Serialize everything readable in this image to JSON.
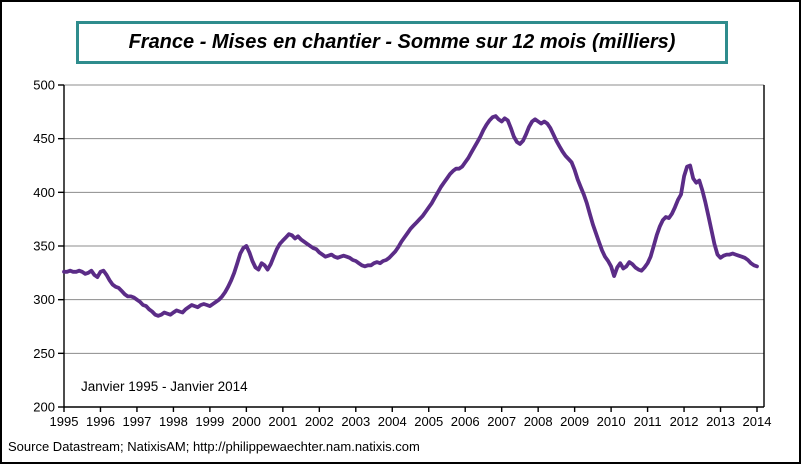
{
  "chart_data": {
    "type": "line",
    "title": "France - Mises en chantier - Somme sur 12 mois (milliers)",
    "annotation": "Janvier 1995 - Janvier 2014",
    "source": "Source Datastream; NatixisAM; http://philippewaechter.nam.natixis.com",
    "xlabel": "",
    "ylabel": "",
    "ylim": [
      200,
      500
    ],
    "y_ticks": [
      200,
      250,
      300,
      350,
      400,
      450,
      500
    ],
    "x_tick_labels": [
      "1995",
      "1996",
      "1997",
      "1998",
      "1999",
      "2000",
      "2001",
      "2002",
      "2003",
      "2004",
      "2005",
      "2006",
      "2007",
      "2008",
      "2009",
      "2010",
      "2011",
      "2012",
      "2013",
      "2014"
    ],
    "frequency": "monthly",
    "grid": "horizontal-gray",
    "legend": "none",
    "line_color": "#5B2C87",
    "gridline_color": "#8C8C8C",
    "title_border_color": "#2F8C8D",
    "series": [
      {
        "name": "Mises en chantier - somme sur 12 mois (milliers)",
        "start": "1995-01",
        "end": "2014-01",
        "values": [
          326,
          326,
          327,
          326,
          326,
          327,
          326,
          324,
          325,
          327,
          323,
          321,
          326,
          327,
          323,
          318,
          314,
          312,
          311,
          308,
          305,
          303,
          303,
          302,
          300,
          298,
          295,
          294,
          291,
          289,
          286,
          285,
          286,
          288,
          287,
          286,
          288,
          290,
          289,
          288,
          291,
          293,
          295,
          294,
          293,
          295,
          296,
          295,
          294,
          296,
          298,
          300,
          303,
          307,
          312,
          318,
          325,
          334,
          343,
          348,
          350,
          344,
          336,
          330,
          328,
          334,
          332,
          328,
          333,
          340,
          347,
          352,
          355,
          358,
          361,
          360,
          357,
          359,
          356,
          354,
          352,
          350,
          348,
          347,
          344,
          342,
          340,
          341,
          342,
          340,
          339,
          340,
          341,
          340,
          339,
          337,
          336,
          334,
          332,
          331,
          332,
          332,
          334,
          335,
          334,
          336,
          337,
          339,
          342,
          345,
          349,
          354,
          358,
          362,
          366,
          369,
          372,
          375,
          378,
          382,
          386,
          390,
          395,
          400,
          405,
          409,
          413,
          417,
          420,
          422,
          422,
          424,
          428,
          432,
          437,
          442,
          447,
          452,
          458,
          463,
          467,
          470,
          471,
          468,
          466,
          469,
          467,
          460,
          452,
          447,
          445,
          448,
          454,
          461,
          466,
          468,
          466,
          464,
          466,
          464,
          460,
          454,
          448,
          443,
          438,
          434,
          431,
          428,
          421,
          412,
          405,
          398,
          390,
          380,
          370,
          362,
          354,
          346,
          340,
          336,
          331,
          322,
          330,
          334,
          329,
          331,
          335,
          333,
          330,
          328,
          327,
          330,
          334,
          340,
          350,
          360,
          368,
          374,
          377,
          376,
          380,
          386,
          393,
          398,
          415,
          424,
          425,
          413,
          409,
          411,
          402,
          391,
          378,
          365,
          352,
          342,
          339,
          341,
          342,
          342,
          343,
          342,
          341,
          340,
          339,
          337,
          334,
          332,
          331
        ]
      }
    ]
  }
}
